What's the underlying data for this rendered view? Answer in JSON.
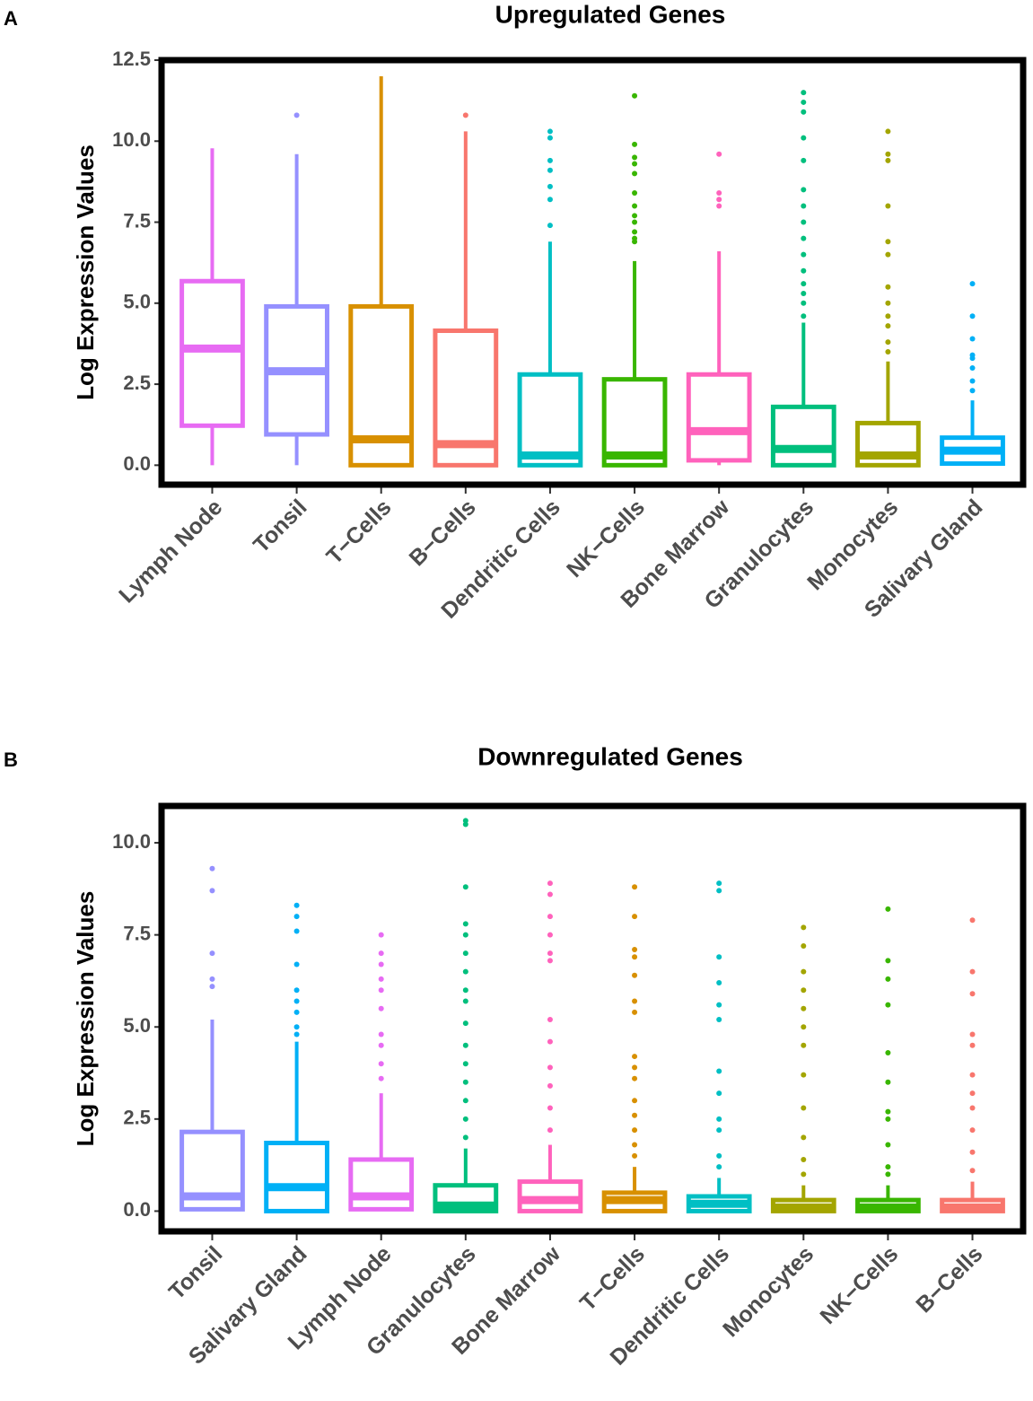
{
  "chart_data": [
    {
      "type": "box",
      "panel_label": "A",
      "title": "Upregulated Genes",
      "y_label": "Log Expression Values",
      "categories": [
        "Lymph Node",
        "Tonsil",
        "T−Cells",
        "B−Cells",
        "Dendritic Cells",
        "NK−Cells",
        "Bone Marrow",
        "Granulocytes",
        "Monocytes",
        "Salivary Gland"
      ],
      "colors": [
        "#E76BF3",
        "#9590FF",
        "#D89000",
        "#F8766D",
        "#00BFC4",
        "#39B600",
        "#FF62BC",
        "#00BF7D",
        "#A3A500",
        "#00B0F6"
      ],
      "boxes": [
        {
          "min": 0,
          "q1": 1.22,
          "median": 3.6,
          "q3": 5.68,
          "max": 9.78,
          "outliers": []
        },
        {
          "min": 0,
          "q1": 0.95,
          "median": 2.9,
          "q3": 4.9,
          "max": 9.6,
          "outliers": [
            10.8
          ]
        },
        {
          "min": 0,
          "q1": 0,
          "median": 0.8,
          "q3": 4.9,
          "max": 12.0,
          "outliers": []
        },
        {
          "min": 0,
          "q1": 0,
          "median": 0.65,
          "q3": 4.15,
          "max": 10.3,
          "outliers": [
            10.8
          ]
        },
        {
          "min": 0,
          "q1": 0,
          "median": 0.3,
          "q3": 2.8,
          "max": 6.9,
          "outliers": [
            7.4,
            8.2,
            8.6,
            9.1,
            9.4,
            10.1,
            10.3
          ]
        },
        {
          "min": 0,
          "q1": 0,
          "median": 0.3,
          "q3": 2.65,
          "max": 6.3,
          "outliers": [
            6.9,
            7.0,
            7.2,
            7.5,
            7.7,
            8.0,
            8.4,
            9.0,
            9.3,
            9.5,
            9.9,
            11.4
          ]
        },
        {
          "min": 0,
          "q1": 0.15,
          "median": 1.05,
          "q3": 2.8,
          "max": 6.6,
          "outliers": [
            8.0,
            8.2,
            8.4,
            9.6
          ]
        },
        {
          "min": 0,
          "q1": 0,
          "median": 0.5,
          "q3": 1.8,
          "max": 4.4,
          "outliers": [
            4.6,
            5.0,
            5.3,
            5.6,
            6.0,
            6.5,
            7.0,
            7.5,
            8.0,
            8.5,
            9.4,
            10.1,
            10.9,
            11.2,
            11.5
          ]
        },
        {
          "min": 0,
          "q1": 0,
          "median": 0.3,
          "q3": 1.3,
          "max": 3.2,
          "outliers": [
            3.5,
            3.8,
            4.3,
            4.6,
            5.0,
            5.5,
            6.5,
            6.9,
            8.0,
            9.4,
            9.6,
            10.3
          ]
        },
        {
          "min": 0,
          "q1": 0.05,
          "median": 0.45,
          "q3": 0.85,
          "max": 2.0,
          "outliers": [
            2.3,
            2.6,
            3.0,
            3.3,
            3.4,
            3.9,
            4.6,
            5.6
          ]
        }
      ],
      "ylim": [
        -0.6,
        12.5
      ],
      "yticks": [
        {
          "value": 0,
          "label": "0.0"
        },
        2.5,
        {
          "value": 5,
          "label": "5.0"
        },
        7.5,
        {
          "value": 10,
          "label": "10.0"
        },
        12.5
      ]
    },
    {
      "type": "box",
      "panel_label": "B",
      "title": "Downregulated Genes",
      "y_label": "Log Expression Values",
      "categories": [
        "Tonsil",
        "Salivary Gland",
        "Lymph Node",
        "Granulocytes",
        "Bone Marrow",
        "T−Cells",
        "Dendritic Cells",
        "Monocytes",
        "NK−Cells",
        "B−Cells"
      ],
      "colors": [
        "#9590FF",
        "#00B0F6",
        "#E76BF3",
        "#00BF7D",
        "#FF62BC",
        "#D89000",
        "#00BFC4",
        "#A3A500",
        "#39B600",
        "#F8766D"
      ],
      "boxes": [
        {
          "min": 0,
          "q1": 0.05,
          "median": 0.4,
          "q3": 2.15,
          "max": 5.2,
          "outliers": [
            6.1,
            6.3,
            7.0,
            8.7,
            9.3
          ]
        },
        {
          "min": 0,
          "q1": 0,
          "median": 0.65,
          "q3": 1.85,
          "max": 4.6,
          "outliers": [
            4.8,
            5.0,
            5.4,
            5.7,
            6.0,
            6.7,
            7.6,
            8.0,
            8.3
          ]
        },
        {
          "min": 0,
          "q1": 0.05,
          "median": 0.4,
          "q3": 1.4,
          "max": 3.2,
          "outliers": [
            3.6,
            4.0,
            4.5,
            4.8,
            5.5,
            6.0,
            6.3,
            6.7,
            7.0,
            7.5
          ]
        },
        {
          "min": 0,
          "q1": 0,
          "median": 0.15,
          "q3": 0.7,
          "max": 1.7,
          "outliers": [
            2.0,
            2.5,
            3.0,
            3.5,
            4.0,
            4.5,
            5.1,
            5.7,
            6.0,
            6.5,
            7.0,
            7.5,
            7.8,
            8.8,
            10.5,
            10.6
          ]
        },
        {
          "min": 0,
          "q1": 0,
          "median": 0.3,
          "q3": 0.8,
          "max": 1.8,
          "outliers": [
            2.2,
            2.8,
            3.4,
            3.9,
            4.6,
            5.2,
            6.8,
            7.0,
            7.5,
            8.0,
            8.6,
            8.9
          ]
        },
        {
          "min": 0,
          "q1": 0,
          "median": 0.3,
          "q3": 0.5,
          "max": 1.2,
          "outliers": [
            1.5,
            1.8,
            2.2,
            2.6,
            3.0,
            3.6,
            3.9,
            4.2,
            5.4,
            5.7,
            6.4,
            6.9,
            7.1,
            8.0,
            8.8
          ]
        },
        {
          "min": 0,
          "q1": 0,
          "median": 0.2,
          "q3": 0.4,
          "max": 0.9,
          "outliers": [
            1.2,
            1.5,
            2.2,
            2.5,
            3.2,
            3.8,
            5.2,
            5.6,
            6.2,
            6.9,
            8.7,
            8.9
          ]
        },
        {
          "min": 0,
          "q1": 0,
          "median": 0.1,
          "q3": 0.3,
          "max": 0.7,
          "outliers": [
            1.0,
            1.4,
            2.0,
            2.8,
            3.7,
            4.5,
            5.0,
            5.5,
            6.0,
            6.5,
            7.2,
            7.7
          ]
        },
        {
          "min": 0,
          "q1": 0,
          "median": 0.1,
          "q3": 0.3,
          "max": 0.7,
          "outliers": [
            1.0,
            1.2,
            1.8,
            2.5,
            2.7,
            3.5,
            4.3,
            5.6,
            6.3,
            6.8,
            8.2
          ]
        },
        {
          "min": 0,
          "q1": 0,
          "median": 0.1,
          "q3": 0.3,
          "max": 0.8,
          "outliers": [
            1.1,
            1.6,
            2.2,
            2.8,
            3.2,
            3.7,
            4.5,
            4.8,
            5.9,
            6.5,
            7.9
          ]
        }
      ],
      "ylim": [
        -0.55,
        11
      ],
      "yticks": [
        {
          "value": 0,
          "label": "0.0"
        },
        2.5,
        {
          "value": 5,
          "label": "5.0"
        },
        7.5,
        {
          "value": 10,
          "label": "10.0"
        }
      ]
    }
  ]
}
